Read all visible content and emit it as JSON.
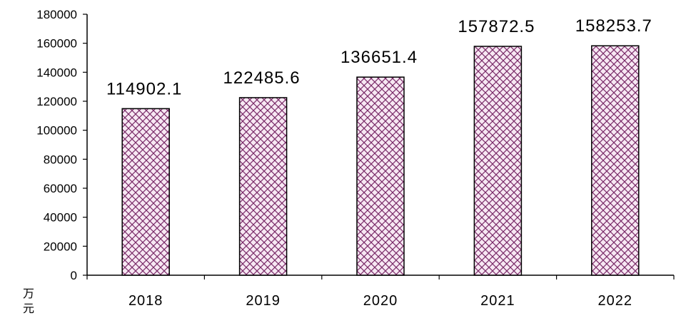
{
  "chart_data": {
    "type": "bar",
    "categories": [
      "2018",
      "2019",
      "2020",
      "2021",
      "2022"
    ],
    "values": [
      114902.1,
      122485.6,
      136651.4,
      157872.5,
      158253.7
    ],
    "data_labels": [
      "114902.1",
      "122485.6",
      "136651.4",
      "157872.5",
      "158253.7"
    ],
    "yticks": [
      "0",
      "20000",
      "40000",
      "60000",
      "80000",
      "100000",
      "120000",
      "140000",
      "160000",
      "180000"
    ],
    "ylim": [
      0,
      180000
    ],
    "unit_label": "万元",
    "grid": false,
    "colors": {
      "bar_fill": "#f7e8f3",
      "hatch": "#7a2a68",
      "border": "#000000"
    }
  }
}
